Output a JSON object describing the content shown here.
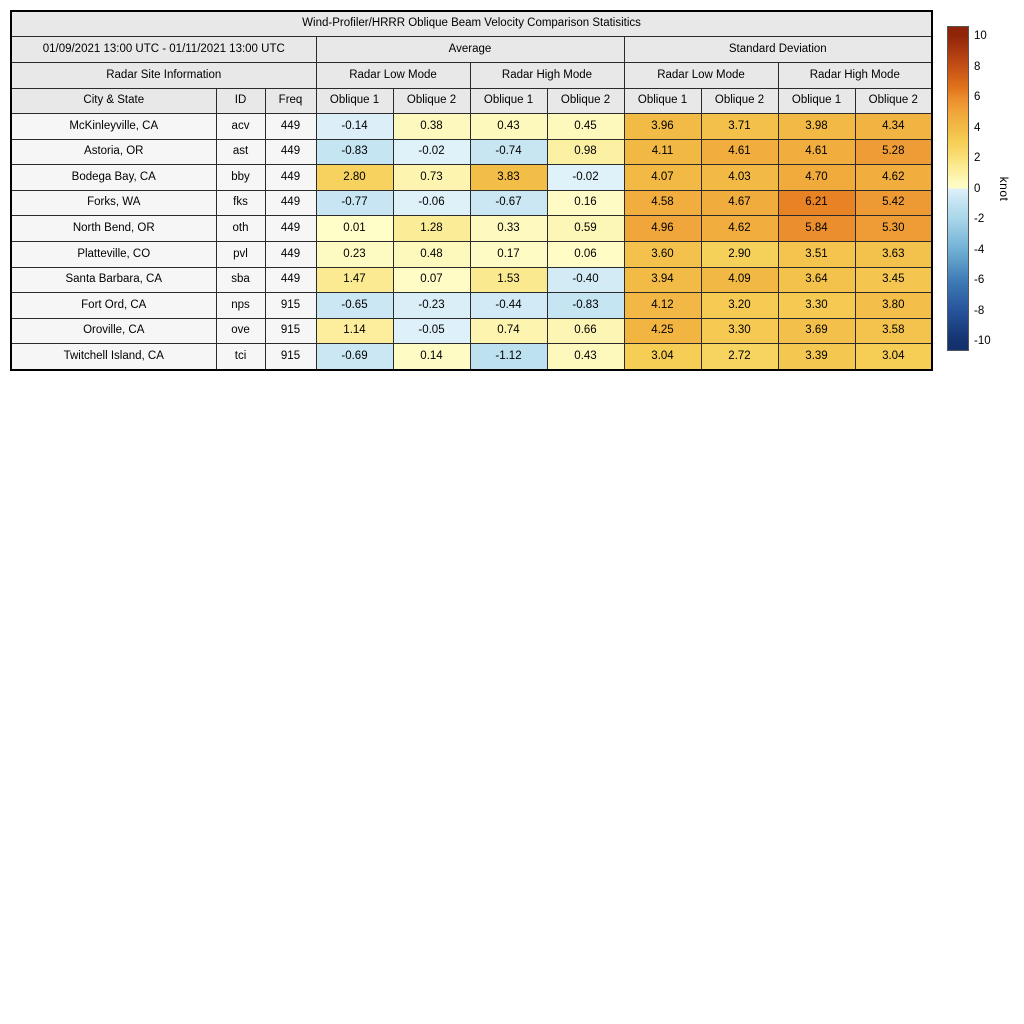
{
  "title": "Wind-Profiler/HRRR Oblique Beam Velocity Comparison Statisitics",
  "header": {
    "date_range": "01/09/2021 13:00 UTC - 01/11/2021 13:00 UTC",
    "average_label": "Average",
    "std_label": "Standard Deviation",
    "site_info_label": "Radar Site Information",
    "low_mode_label": "Radar Low Mode",
    "high_mode_label": "Radar High Mode",
    "city_label": "City & State",
    "id_label": "ID",
    "freq_label": "Freq",
    "oblique1_label": "Oblique 1",
    "oblique2_label": "Oblique 2"
  },
  "colorbar": {
    "unit": "knot",
    "ticks": [
      10,
      8,
      6,
      4,
      2,
      0,
      -2,
      -4,
      -6,
      -8,
      -10
    ],
    "vmin": -10,
    "vmax": 10
  },
  "colormap": {
    "positive_stops": [
      [
        0,
        "#fffdc8"
      ],
      [
        0.5,
        "#fdf8bb"
      ],
      [
        1,
        "#fcf0a2"
      ],
      [
        1.5,
        "#fbea90"
      ],
      [
        2,
        "#f9e078"
      ],
      [
        3,
        "#f6cf57"
      ],
      [
        4,
        "#f2ba45"
      ],
      [
        5,
        "#f0a53a"
      ],
      [
        6,
        "#ea8a2c"
      ],
      [
        6.5,
        "#e2761c"
      ],
      [
        8,
        "#c44e16"
      ],
      [
        10,
        "#8f2408"
      ]
    ],
    "negative_stops": [
      [
        -10,
        "#14336e"
      ],
      [
        -8,
        "#27539b"
      ],
      [
        -6,
        "#3f7cb6"
      ],
      [
        -4,
        "#70b0d4"
      ],
      [
        -2,
        "#a8d6ea"
      ],
      [
        -1,
        "#c0e2f0"
      ],
      [
        0,
        "#e0f1f9"
      ]
    ]
  },
  "chart_data": {
    "type": "table",
    "title": "Wind-Profiler/HRRR Oblique Beam Velocity Comparison Statisitics",
    "column_groups": [
      "Radar Site Information",
      "Average / Radar Low Mode",
      "Average / Radar High Mode",
      "Standard Deviation / Radar Low Mode",
      "Standard Deviation / Radar High Mode"
    ],
    "value_columns": [
      "Oblique 1",
      "Oblique 2",
      "Oblique 1",
      "Oblique 2",
      "Oblique 1",
      "Oblique 2",
      "Oblique 1",
      "Oblique 2"
    ],
    "color_scale": {
      "unit": "knot",
      "min": -10,
      "max": 10
    },
    "rows": [
      {
        "city": "McKinleyville, CA",
        "id": "acv",
        "freq": "449",
        "avg": [
          -0.14,
          0.38,
          0.43,
          0.45
        ],
        "std": [
          3.96,
          3.71,
          3.98,
          4.34
        ]
      },
      {
        "city": "Astoria, OR",
        "id": "ast",
        "freq": "449",
        "avg": [
          -0.83,
          -0.02,
          -0.74,
          0.98
        ],
        "std": [
          4.11,
          4.61,
          4.61,
          5.28
        ]
      },
      {
        "city": "Bodega Bay, CA",
        "id": "bby",
        "freq": "449",
        "avg": [
          2.8,
          0.73,
          3.83,
          -0.02
        ],
        "std": [
          4.07,
          4.03,
          4.7,
          4.62
        ]
      },
      {
        "city": "Forks, WA",
        "id": "fks",
        "freq": "449",
        "avg": [
          -0.77,
          -0.06,
          -0.67,
          0.16
        ],
        "std": [
          4.58,
          4.67,
          6.21,
          5.42
        ]
      },
      {
        "city": "North Bend, OR",
        "id": "oth",
        "freq": "449",
        "avg": [
          0.01,
          1.28,
          0.33,
          0.59
        ],
        "std": [
          4.96,
          4.62,
          5.84,
          5.3
        ]
      },
      {
        "city": "Platteville, CO",
        "id": "pvl",
        "freq": "449",
        "avg": [
          0.23,
          0.48,
          0.17,
          0.06
        ],
        "std": [
          3.6,
          2.9,
          3.51,
          3.63
        ]
      },
      {
        "city": "Santa Barbara, CA",
        "id": "sba",
        "freq": "449",
        "avg": [
          1.47,
          0.07,
          1.53,
          -0.4
        ],
        "std": [
          3.94,
          4.09,
          3.64,
          3.45
        ]
      },
      {
        "city": "Fort Ord, CA",
        "id": "nps",
        "freq": "915",
        "avg": [
          -0.65,
          -0.23,
          -0.44,
          -0.83
        ],
        "std": [
          4.12,
          3.2,
          3.3,
          3.8
        ]
      },
      {
        "city": "Oroville, CA",
        "id": "ove",
        "freq": "915",
        "avg": [
          1.14,
          -0.05,
          0.74,
          0.66
        ],
        "std": [
          4.25,
          3.3,
          3.69,
          3.58
        ]
      },
      {
        "city": "Twitchell Island, CA",
        "id": "tci",
        "freq": "915",
        "avg": [
          -0.69,
          0.14,
          -1.12,
          0.43
        ],
        "std": [
          3.04,
          2.72,
          3.39,
          3.04
        ]
      }
    ]
  }
}
